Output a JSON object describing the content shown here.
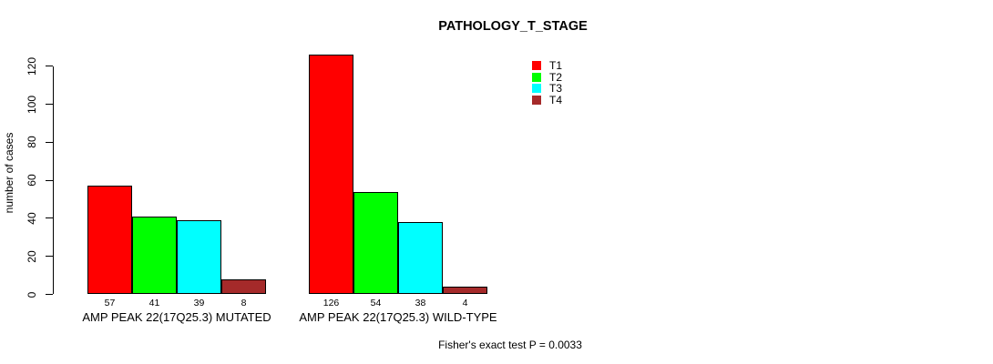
{
  "chart_data": {
    "type": "bar",
    "title": "PATHOLOGY_T_STAGE",
    "ylabel": "number of cases",
    "ylim": [
      0,
      120
    ],
    "yticks": [
      0,
      20,
      40,
      60,
      80,
      100,
      120
    ],
    "grid": false,
    "legend_position": "top-right",
    "series": [
      {
        "name": "T1",
        "color": "#ff0000"
      },
      {
        "name": "T2",
        "color": "#00ff00"
      },
      {
        "name": "T3",
        "color": "#00ffff"
      },
      {
        "name": "T4",
        "color": "#a52a2a"
      }
    ],
    "groups": [
      {
        "label": "AMP PEAK 22(17Q25.3) MUTATED",
        "values": [
          57,
          41,
          39,
          8
        ]
      },
      {
        "label": "AMP PEAK 22(17Q25.3) WILD-TYPE",
        "values": [
          126,
          54,
          38,
          4
        ]
      }
    ],
    "bar_value_labels": true,
    "footnote": "Fisher's exact test P = 0.0033"
  }
}
